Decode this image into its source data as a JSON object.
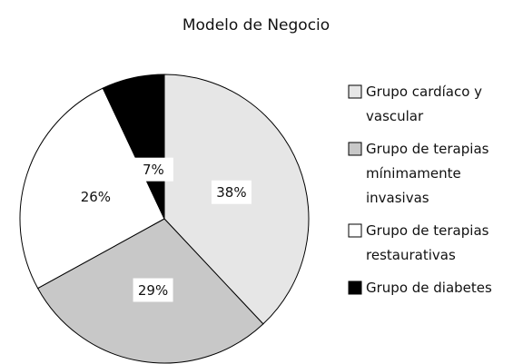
{
  "chart_data": {
    "type": "pie",
    "title": "Modelo de Negocio",
    "categories": [
      "Grupo cardíaco y vascular",
      "Grupo de terapias mínimamente invasivas",
      "Grupo de terapias restaurativas",
      "Grupo de diabetes"
    ],
    "values": [
      38,
      29,
      26,
      7
    ],
    "value_labels": [
      "38%",
      "29%",
      "26%",
      "7%"
    ],
    "colors": [
      "#e6e6e6",
      "#c8c8c8",
      "#ffffff",
      "#000000"
    ],
    "legend": "right"
  }
}
